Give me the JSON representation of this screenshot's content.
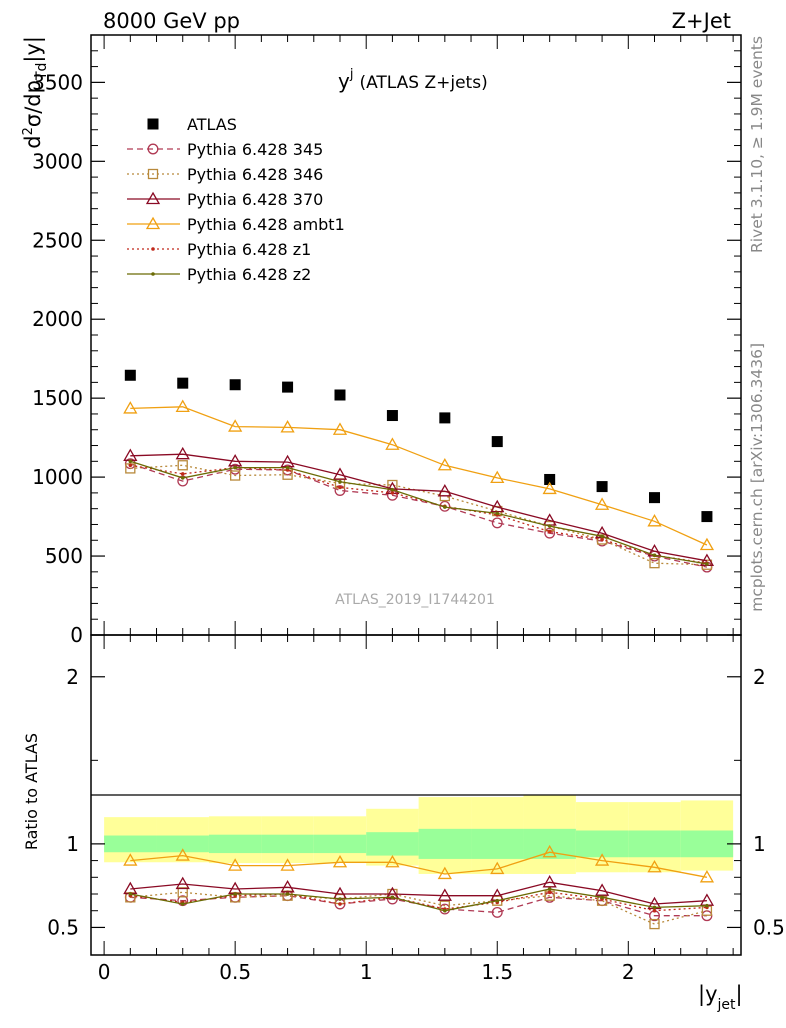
{
  "header": {
    "left": "8000 GeV pp",
    "right": "Z+Jet"
  },
  "side_text": {
    "rivet": "Rivet 3.1.10, ≥ 1.9M events",
    "mcplots": "mcplots.cern.ch [arXiv:1306.3436]"
  },
  "chart_data": [
    {
      "type": "line",
      "title": "y",
      "title_sup": "j",
      "title_suffix": "(ATLAS Z+jets)",
      "ylabel": "d²σ/dp_Td|y|",
      "watermark": "ATLAS_2019_I1744201",
      "ylim": [
        0,
        3800
      ],
      "xlim": [
        -0.05,
        2.43
      ],
      "yticks": [
        0,
        500,
        1000,
        1500,
        2000,
        2500,
        3000,
        3500
      ],
      "ytick_labels": [
        "0",
        "500",
        "1000",
        "1500",
        "2000",
        "2500",
        "3000",
        "3500"
      ],
      "legend_position": "top-left",
      "x": [
        0.1,
        0.3,
        0.5,
        0.7,
        0.9,
        1.1,
        1.3,
        1.5,
        1.7,
        1.9,
        2.1,
        2.3
      ],
      "series": [
        {
          "name": "ATLAS",
          "color": "#000000",
          "marker": "filled-square",
          "line": "none",
          "values": [
            1645,
            1595,
            1585,
            1570,
            1520,
            1390,
            1375,
            1225,
            985,
            940,
            870,
            750
          ]
        },
        {
          "name": "Pythia 6.428 345",
          "color": "#b03a54",
          "marker": "open-circle",
          "line": "dashed",
          "values": [
            1085,
            975,
            1050,
            1045,
            915,
            885,
            815,
            710,
            645,
            595,
            500,
            430
          ]
        },
        {
          "name": "Pythia 6.428 346",
          "color": "#b8893b",
          "marker": "open-square",
          "line": "dotted",
          "values": [
            1055,
            1075,
            1010,
            1015,
            960,
            950,
            880,
            785,
            690,
            605,
            455,
            445
          ]
        },
        {
          "name": "Pythia 6.428 370",
          "color": "#8a0a24",
          "marker": "open-triangle",
          "line": "solid",
          "values": [
            1135,
            1145,
            1100,
            1095,
            1015,
            925,
            910,
            810,
            725,
            645,
            530,
            470
          ]
        },
        {
          "name": "Pythia 6.428 ambt1",
          "color": "#f0a012",
          "marker": "open-triangle",
          "line": "solid",
          "values": [
            1435,
            1445,
            1320,
            1315,
            1300,
            1205,
            1075,
            995,
            925,
            825,
            720,
            570
          ]
        },
        {
          "name": "Pythia 6.428 z1",
          "color": "#c0281a",
          "marker": "dot",
          "line": "dotted",
          "values": [
            1075,
            1020,
            1060,
            1045,
            935,
            900,
            815,
            760,
            655,
            605,
            505,
            455
          ]
        },
        {
          "name": "Pythia 6.428 z2",
          "color": "#6b6b05",
          "marker": "dot",
          "line": "solid",
          "values": [
            1100,
            995,
            1060,
            1060,
            970,
            920,
            810,
            770,
            690,
            625,
            505,
            450
          ]
        }
      ]
    },
    {
      "type": "line",
      "ylabel": "Ratio to ATLAS",
      "xlabel": "|y_jet|",
      "ylim": [
        0.335,
        2.25
      ],
      "xlim": [
        -0.05,
        2.43
      ],
      "yticks": [
        0.5,
        1,
        2
      ],
      "ytick_labels": [
        "0.5",
        "1",
        "2"
      ],
      "xticks": [
        0,
        0.5,
        1,
        1.5,
        2
      ],
      "xtick_labels": [
        "0",
        "0.5",
        "1",
        "1.5",
        "2"
      ],
      "x": [
        0.1,
        0.3,
        0.5,
        0.7,
        0.9,
        1.1,
        1.3,
        1.5,
        1.7,
        1.9,
        2.1,
        2.3
      ],
      "bin_edges": [
        0,
        0.2,
        0.4,
        0.6,
        0.8,
        1.0,
        1.2,
        1.4,
        1.6,
        1.8,
        2.0,
        2.2,
        2.4
      ],
      "band_outer": {
        "color": "#ffff99",
        "low": [
          0.89,
          0.89,
          0.885,
          0.885,
          0.885,
          0.87,
          0.82,
          0.82,
          0.82,
          0.83,
          0.83,
          0.84
        ],
        "high": [
          1.16,
          1.16,
          1.165,
          1.165,
          1.165,
          1.21,
          1.28,
          1.28,
          1.29,
          1.25,
          1.25,
          1.26
        ]
      },
      "band_inner": {
        "color": "#99ff99",
        "low": [
          0.95,
          0.95,
          0.945,
          0.945,
          0.945,
          0.93,
          0.91,
          0.91,
          0.91,
          0.92,
          0.92,
          0.92
        ],
        "high": [
          1.05,
          1.05,
          1.055,
          1.055,
          1.055,
          1.07,
          1.09,
          1.09,
          1.09,
          1.08,
          1.08,
          1.08
        ]
      },
      "series": [
        {
          "name": "Pythia 6.428 345",
          "color": "#b03a54",
          "marker": "open-circle",
          "line": "dashed",
          "values": [
            0.68,
            0.66,
            0.68,
            0.69,
            0.64,
            0.67,
            0.61,
            0.59,
            0.68,
            0.66,
            0.57,
            0.57
          ]
        },
        {
          "name": "Pythia 6.428 346",
          "color": "#b8893b",
          "marker": "open-square",
          "line": "dotted",
          "values": [
            0.68,
            0.71,
            0.68,
            0.69,
            0.67,
            0.7,
            0.63,
            0.66,
            0.69,
            0.66,
            0.52,
            0.6
          ]
        },
        {
          "name": "Pythia 6.428 370",
          "color": "#8a0a24",
          "marker": "open-triangle",
          "line": "solid",
          "values": [
            0.73,
            0.76,
            0.73,
            0.74,
            0.7,
            0.7,
            0.69,
            0.69,
            0.77,
            0.72,
            0.64,
            0.66
          ]
        },
        {
          "name": "Pythia 6.428 ambt1",
          "color": "#f0a012",
          "marker": "open-triangle",
          "line": "solid",
          "values": [
            0.9,
            0.93,
            0.87,
            0.87,
            0.89,
            0.89,
            0.82,
            0.85,
            0.95,
            0.9,
            0.86,
            0.8
          ]
        },
        {
          "name": "Pythia 6.428 z1",
          "color": "#c0281a",
          "marker": "dot",
          "line": "dotted",
          "values": [
            0.69,
            0.65,
            0.69,
            0.7,
            0.64,
            0.68,
            0.61,
            0.65,
            0.71,
            0.67,
            0.6,
            0.62
          ]
        },
        {
          "name": "Pythia 6.428 z2",
          "color": "#6b6b05",
          "marker": "dot",
          "line": "solid",
          "values": [
            0.7,
            0.64,
            0.7,
            0.7,
            0.67,
            0.68,
            0.6,
            0.66,
            0.73,
            0.68,
            0.62,
            0.63
          ]
        }
      ]
    }
  ]
}
